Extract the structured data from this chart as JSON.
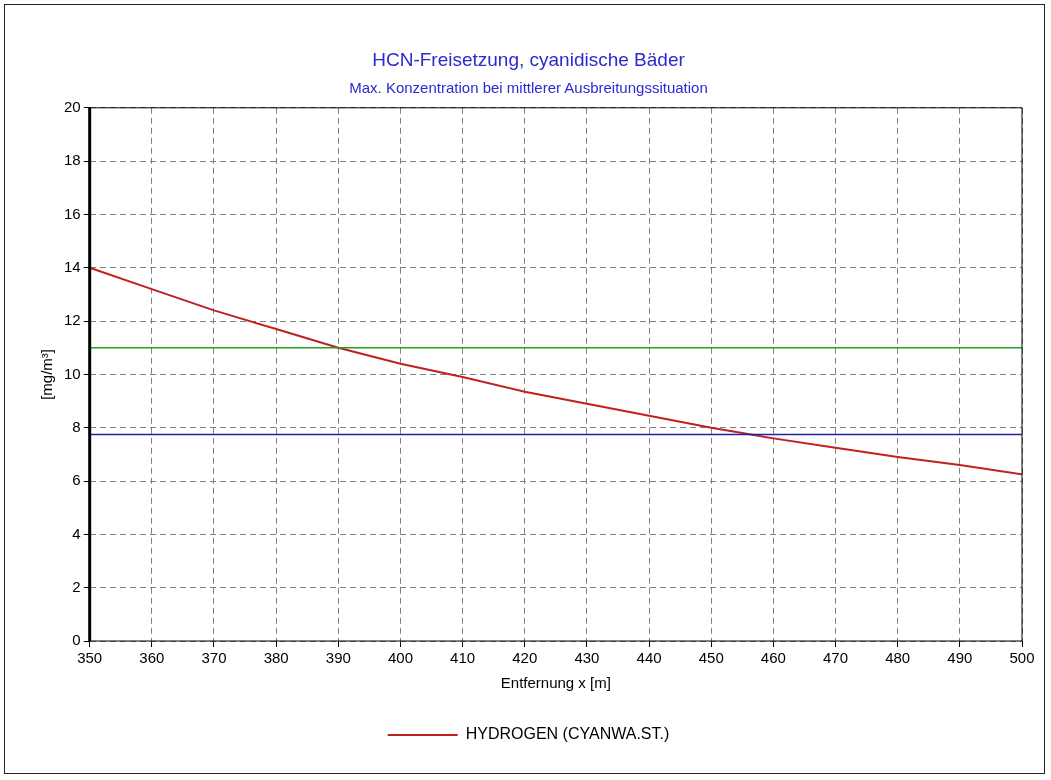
{
  "chart_data": {
    "type": "line",
    "title": "HCN-Freisetzung, cyanidische Bäder",
    "subtitle": "Max. Konzentration bei mittlerer Ausbreitungssituation",
    "xlabel": "Entfernung x [m]",
    "ylabel": "[mg/m³]",
    "x": [
      350,
      360,
      370,
      380,
      390,
      400,
      410,
      420,
      430,
      440,
      450,
      455,
      460,
      470,
      480,
      490,
      500
    ],
    "series": [
      {
        "name": "HYDROGEN (CYANWA.ST.)",
        "color": "#c02020",
        "values": [
          14,
          13.2,
          12.4,
          11.7,
          11.0,
          10.4,
          9.9,
          9.35,
          8.9,
          8.45,
          8.0,
          7.8,
          7.6,
          7.25,
          6.9,
          6.6,
          6.25
        ]
      }
    ],
    "xlim": [
      350,
      500
    ],
    "xticks": [
      350,
      360,
      370,
      380,
      390,
      400,
      410,
      420,
      430,
      440,
      450,
      460,
      470,
      480,
      490,
      500
    ],
    "ylim": [
      0,
      20
    ],
    "yticks": [
      0,
      2,
      4,
      6,
      8,
      10,
      12,
      14,
      16,
      18,
      20
    ],
    "ref_lines": [
      {
        "axis": "y",
        "value": 11.0,
        "color": "#22a022"
      },
      {
        "axis": "y",
        "value": 7.75,
        "color": "#2020a0"
      }
    ],
    "grid": true,
    "legend": "bottom",
    "marker": "none",
    "line_style": "solid"
  }
}
